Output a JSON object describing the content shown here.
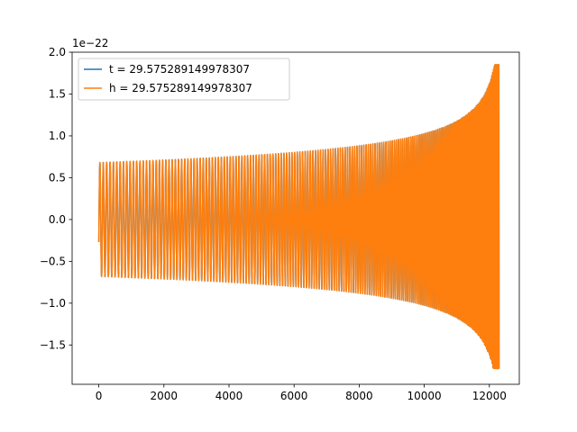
{
  "chart_data": {
    "type": "line",
    "title": "",
    "xlabel": "",
    "ylabel": "",
    "y_offset_label": "1e−22",
    "xlim": [
      -820,
      12920
    ],
    "ylim": [
      -1.97,
      2.0
    ],
    "xticks": [
      0,
      2000,
      4000,
      6000,
      8000,
      10000,
      12000
    ],
    "xtick_labels": [
      "0",
      "2000",
      "4000",
      "6000",
      "8000",
      "10000",
      "12000"
    ],
    "yticks": [
      -1.5,
      -1.0,
      -0.5,
      0.0,
      0.5,
      1.0,
      1.5,
      2.0
    ],
    "ytick_labels": [
      "−1.5",
      "−1.0",
      "−0.5",
      "0.0",
      "0.5",
      "1.0",
      "1.5",
      "2.0"
    ],
    "grid": false,
    "legend_position": "upper-left",
    "series": [
      {
        "name": "t = 29.575289149978307",
        "color": "#1f77b4",
        "description": "chirp waveform, hidden beneath orange series",
        "x_range": [
          0,
          12300
        ],
        "initial_value": -0.27,
        "initial_amplitude": 0.68,
        "peak_amplitude_positive": 1.85,
        "peak_amplitude_negative": -1.78,
        "end_x": 12300
      },
      {
        "name": "h = 29.575289149978307",
        "color": "#ff7f0e",
        "description": "chirp waveform",
        "x_range": [
          0,
          12300
        ],
        "initial_value": -0.27,
        "initial_amplitude": 0.68,
        "peak_amplitude_positive": 1.85,
        "peak_amplitude_negative": -1.78,
        "end_x": 12300
      }
    ]
  }
}
